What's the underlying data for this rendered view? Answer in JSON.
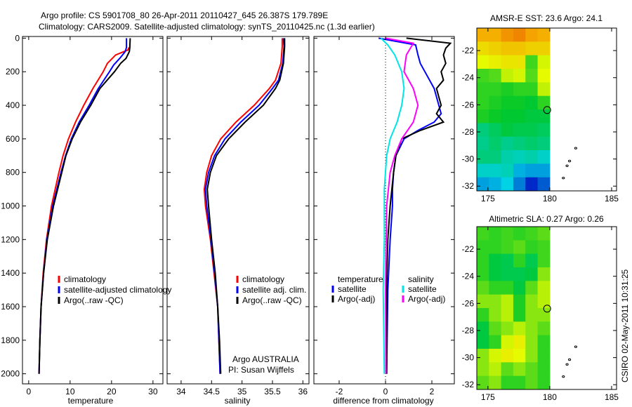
{
  "titles": {
    "line1": "Argo profile: CS 5901708_80 26-Apr-2011 20110427_645 26.387S 179.789E",
    "line2": "Climatology: CARS2009. Satellite-adjusted climatology: synTS_20110425.nc (1.3d earlier)"
  },
  "footer_stamp": "CSIRO 02-May-2011 10:31:25",
  "chart_data": [
    {
      "type": "line",
      "id": "temperature",
      "xlabel": "temperature",
      "ylabel": "",
      "xlim": [
        -1.5,
        32.4
      ],
      "ylim": [
        2060,
        -10
      ],
      "xticks": [
        0,
        10,
        20,
        30
      ],
      "yticks": [
        0,
        200,
        400,
        600,
        800,
        1000,
        1200,
        1400,
        1600,
        1800,
        2000
      ],
      "legend": [
        "climatology",
        "satellite-adjusted climatology",
        "Argo(..raw -QC)"
      ],
      "legend_position": "lower-center",
      "series": [
        {
          "name": "climatology",
          "color": "#ff0000",
          "depth": [
            55,
            70,
            100,
            150,
            200,
            300,
            400,
            500,
            600,
            700,
            800,
            900,
            1000,
            1200,
            1400,
            1600,
            1800,
            2000
          ],
          "values": [
            24.2,
            24.0,
            21.0,
            19.0,
            18.0,
            15.5,
            13.3,
            11.3,
            9.6,
            8.3,
            7.3,
            6.4,
            5.5,
            4.3,
            3.5,
            3.0,
            2.7,
            2.5
          ]
        },
        {
          "name": "satellite-adjusted climatology",
          "color": "#0000ff",
          "depth": [
            0,
            55,
            80,
            120,
            160,
            200,
            300,
            400,
            500,
            600,
            700,
            800,
            900,
            1000,
            1200,
            1400,
            1600,
            1800,
            2000
          ],
          "values": [
            23.6,
            23.6,
            23.3,
            22.0,
            20.5,
            19.5,
            16.8,
            14.6,
            12.2,
            10.3,
            8.9,
            7.8,
            6.8,
            5.8,
            4.4,
            3.6,
            3.0,
            2.7,
            2.5
          ]
        },
        {
          "name": "Argo(..raw -QC)",
          "color": "#000000",
          "depth": [
            0,
            60,
            80,
            120,
            150,
            200,
            300,
            400,
            500,
            600,
            700,
            800,
            900,
            1000,
            1200,
            1400,
            1600,
            1800,
            2000
          ],
          "values": [
            24.5,
            24.4,
            24.3,
            23.5,
            22.2,
            20.7,
            17.2,
            15.0,
            12.5,
            10.5,
            9.0,
            8.0,
            7.0,
            6.0,
            4.5,
            3.6,
            3.0,
            2.7,
            2.5
          ]
        }
      ]
    },
    {
      "type": "line",
      "id": "salinity",
      "xlabel": "salinity",
      "xlim": [
        33.77,
        36.1
      ],
      "ylim": [
        2060,
        -10
      ],
      "xticks": [
        34,
        34.5,
        35,
        35.5,
        36
      ],
      "legend": [
        "climatology",
        "satellite adj. clim.",
        "Argo(..raw -QC)"
      ],
      "legend_position": "lower-center",
      "annotation": [
        "Argo AUSTRALIA",
        "PI: Susan Wijffels"
      ],
      "series": [
        {
          "name": "climatology",
          "color": "#ff0000",
          "depth": [
            0,
            50,
            150,
            250,
            300,
            400,
            500,
            600,
            700,
            800,
            900,
            1000,
            1200,
            1400,
            1600,
            1800,
            2000
          ],
          "values": [
            35.66,
            35.66,
            35.64,
            35.55,
            35.45,
            35.2,
            34.9,
            34.65,
            34.5,
            34.42,
            34.38,
            34.4,
            34.48,
            34.54,
            34.6,
            34.62,
            34.64
          ]
        },
        {
          "name": "satellite adj. clim.",
          "color": "#0000ff",
          "depth": [
            0,
            50,
            150,
            250,
            300,
            400,
            500,
            600,
            700,
            800,
            900,
            1000,
            1200,
            1400,
            1600,
            1800,
            2000
          ],
          "values": [
            35.68,
            35.69,
            35.67,
            35.6,
            35.5,
            35.28,
            34.98,
            34.72,
            34.55,
            34.45,
            34.4,
            34.42,
            34.49,
            34.55,
            34.6,
            34.62,
            34.64
          ]
        },
        {
          "name": "Argo(..raw -QC)",
          "color": "#000000",
          "depth": [
            0,
            50,
            150,
            250,
            300,
            400,
            500,
            600,
            700,
            800,
            900,
            1000,
            1200,
            1400,
            1600,
            1800,
            2000
          ],
          "values": [
            35.7,
            35.7,
            35.68,
            35.62,
            35.55,
            35.35,
            35.05,
            34.78,
            34.58,
            34.48,
            34.43,
            34.45,
            34.5,
            34.56,
            34.6,
            34.63,
            34.65
          ]
        }
      ]
    },
    {
      "type": "line",
      "id": "difference",
      "xlabel": "difference from climatology",
      "xlim": [
        -3.09,
        2.97
      ],
      "ylim": [
        2060,
        -10
      ],
      "xticks": [
        -2,
        0,
        2
      ],
      "zero_line": "dotted",
      "legend_groups": [
        {
          "title": "temperature",
          "items": [
            "satellite",
            "Argo(-adj)"
          ]
        },
        {
          "title": "salinity",
          "items": [
            "satellite",
            "Argo(-adj)"
          ]
        }
      ],
      "series": [
        {
          "name": "temperature satellite",
          "color": "#0000ff",
          "depth": [
            0,
            40,
            100,
            150,
            200,
            300,
            400,
            450,
            500,
            550,
            600,
            700,
            800,
            900,
            1000,
            1200,
            1500,
            2000
          ],
          "values": [
            -0.3,
            1.3,
            1.4,
            1.5,
            1.7,
            2.1,
            2.3,
            2.4,
            2.1,
            1.4,
            0.8,
            0.45,
            0.35,
            0.3,
            0.3,
            0.2,
            0.1,
            0.05
          ]
        },
        {
          "name": "temperature Argo(-adj)",
          "color": "#000000",
          "depth": [
            0,
            30,
            60,
            100,
            150,
            200,
            250,
            300,
            350,
            400,
            450,
            500,
            550,
            600,
            700,
            800,
            1000,
            1200,
            1500,
            2000
          ],
          "values": [
            0.9,
            2.8,
            2.6,
            2.5,
            2.6,
            2.4,
            2.5,
            2.2,
            2.3,
            2.4,
            2.2,
            2.5,
            1.5,
            0.7,
            0.45,
            0.35,
            0.2,
            0.1,
            0.05,
            0.05
          ]
        },
        {
          "name": "salinity satellite",
          "color": "#00e5e5",
          "depth": [
            0,
            40,
            100,
            200,
            300,
            400,
            500,
            600,
            700,
            900,
            1200,
            1500,
            2000
          ],
          "values": [
            -0.2,
            0.1,
            0.4,
            0.7,
            0.8,
            0.7,
            0.5,
            0.2,
            0.05,
            -0.05,
            -0.05,
            -0.1,
            -0.05
          ]
        },
        {
          "name": "salinity Argo(-adj)",
          "color": "#ff00ff",
          "depth": [
            0,
            30,
            100,
            200,
            300,
            400,
            500,
            600,
            700,
            800,
            1000,
            1500,
            2000
          ],
          "values": [
            0.0,
            1.2,
            0.9,
            0.8,
            1.2,
            1.4,
            1.2,
            0.7,
            0.4,
            0.2,
            0.05,
            0.0,
            0.02
          ]
        }
      ]
    },
    {
      "type": "heatmap",
      "id": "sst_map",
      "title": "AMSR-E SST: 23.6 Argo: 24.1",
      "xlim": [
        174.1,
        185.4
      ],
      "ylim": [
        -32.35,
        -20.34
      ],
      "xticks": [
        175,
        180,
        185
      ],
      "yticks": [
        -22,
        -24,
        -26,
        -28,
        -30,
        -32
      ],
      "data_lon": [
        174.1,
        180.0
      ],
      "color_range": [
        21,
        26
      ],
      "marker": {
        "lon": 179.789,
        "lat": -26.387
      },
      "values": [
        [
          25.2,
          25.2,
          25.4,
          25.5,
          25.3,
          25.2
        ],
        [
          24.8,
          24.9,
          25.0,
          25.0,
          24.9,
          24.9
        ],
        [
          24.5,
          24.6,
          24.7,
          24.7,
          23.6,
          24.4
        ],
        [
          23.6,
          23.7,
          24.3,
          24.4,
          23.7,
          24.5
        ],
        [
          23.5,
          23.5,
          23.4,
          23.5,
          23.5,
          24.3
        ],
        [
          23.5,
          23.4,
          23.3,
          23.3,
          23.2,
          23.5
        ],
        [
          23.4,
          23.3,
          23.2,
          23.2,
          23.1,
          23.1
        ],
        [
          22.7,
          22.9,
          23.1,
          23.0,
          23.0,
          22.9
        ],
        [
          22.6,
          22.8,
          22.6,
          22.7,
          22.8,
          22.7
        ],
        [
          22.7,
          22.7,
          22.4,
          22.3,
          22.4,
          22.2
        ],
        [
          22.2,
          22.2,
          22.3,
          21.8,
          21.7,
          21.7
        ],
        [
          21.7,
          21.8,
          22.0,
          21.5,
          21.0,
          21.3
        ]
      ]
    },
    {
      "type": "heatmap",
      "id": "sla_map",
      "title": "Altimetric SLA: 0.27 Argo: 0.26",
      "xlim": [
        174.1,
        185.4
      ],
      "ylim": [
        -32.35,
        -20.34
      ],
      "xticks": [
        175,
        180,
        185
      ],
      "yticks": [
        -22,
        -24,
        -26,
        -28,
        -30,
        -32
      ],
      "data_lon": [
        174.1,
        180.0
      ],
      "color_range": [
        -0.3,
        0.7
      ],
      "marker": {
        "lon": 179.789,
        "lat": -26.387
      },
      "values": [
        [
          0.22,
          0.2,
          0.22,
          0.2,
          0.22,
          0.25
        ],
        [
          0.2,
          0.2,
          0.22,
          0.25,
          0.2,
          0.22
        ],
        [
          0.2,
          0.12,
          0.1,
          0.2,
          0.1,
          0.22
        ],
        [
          0.2,
          0.12,
          0.1,
          0.1,
          0.12,
          0.3
        ],
        [
          0.25,
          0.2,
          0.2,
          0.12,
          0.25,
          0.35
        ],
        [
          0.3,
          0.3,
          0.35,
          0.18,
          0.3,
          0.35
        ],
        [
          0.2,
          0.3,
          0.35,
          0.18,
          0.3,
          0.3
        ],
        [
          0.12,
          0.25,
          0.3,
          0.35,
          0.3,
          0.25
        ],
        [
          0.12,
          0.2,
          0.38,
          0.42,
          0.3,
          0.2
        ],
        [
          0.3,
          0.38,
          0.42,
          0.4,
          0.3,
          0.2
        ],
        [
          0.3,
          0.35,
          0.25,
          0.3,
          0.25,
          0.2
        ],
        [
          0.25,
          0.3,
          0.2,
          0.2,
          0.25,
          0.2
        ]
      ]
    }
  ],
  "islands": [
    {
      "lon": 182.1,
      "lat": -29.2
    },
    {
      "lon": 181.6,
      "lat": -30.15
    },
    {
      "lon": 181.4,
      "lat": -30.5
    },
    {
      "lon": 181.1,
      "lat": -31.4
    }
  ]
}
